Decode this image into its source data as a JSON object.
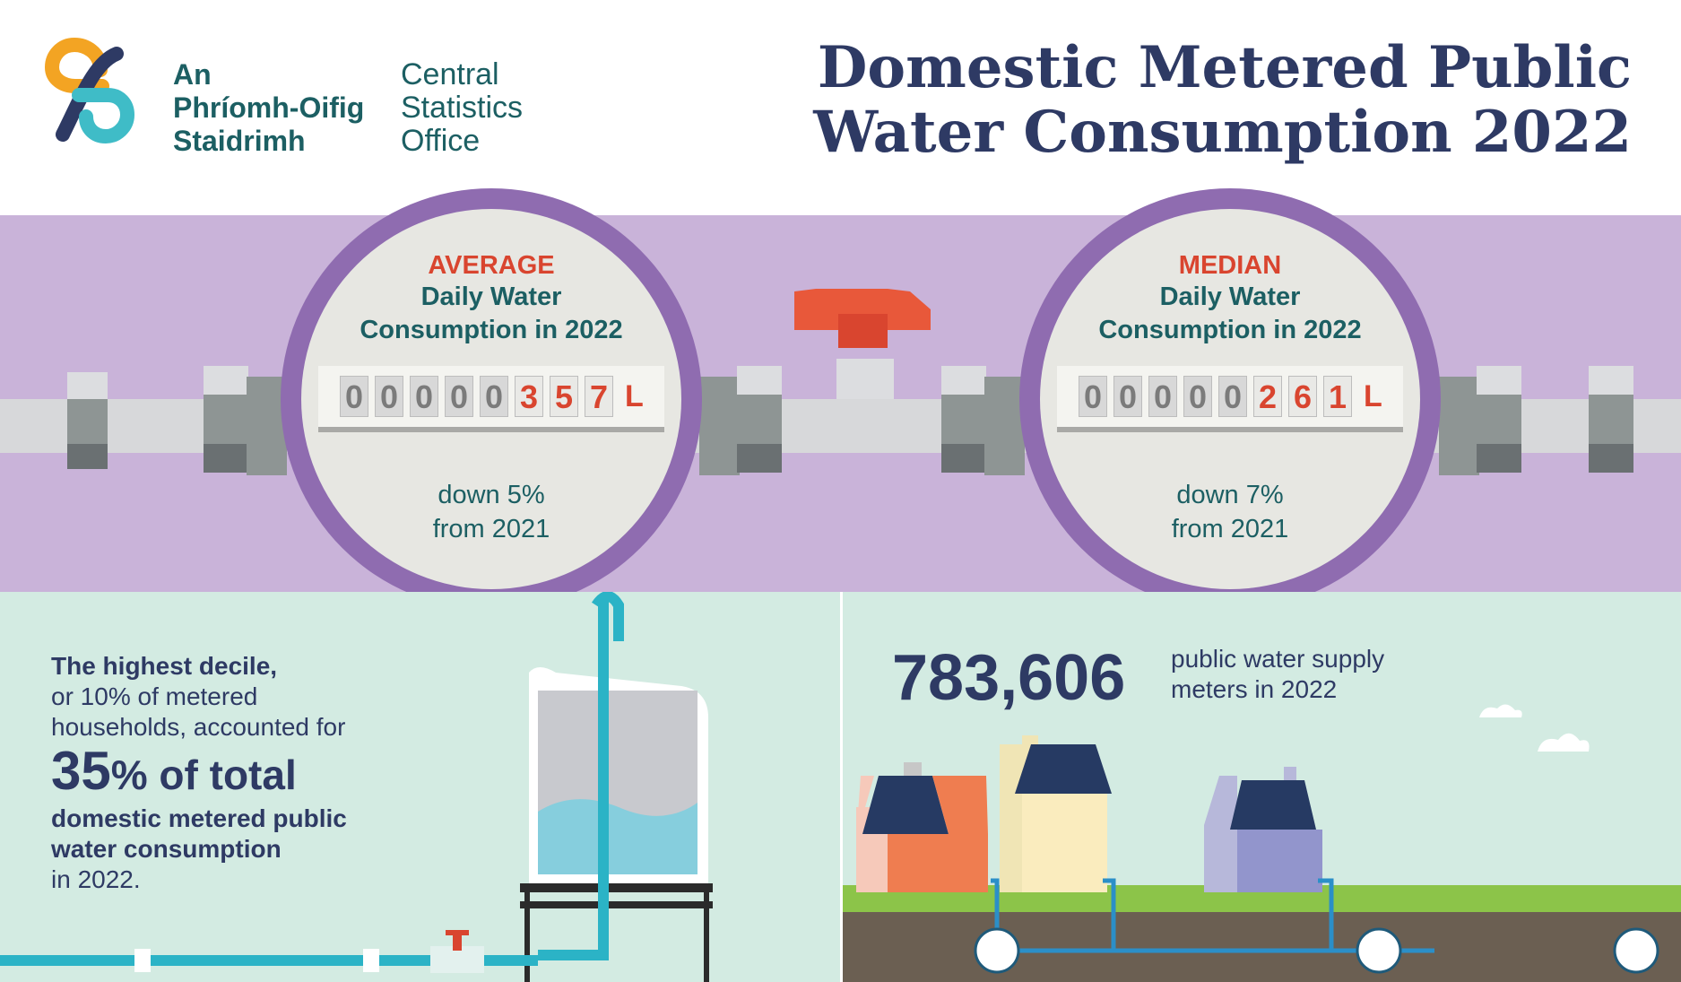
{
  "logo": {
    "irish_line1": "An",
    "irish_line2": "Phríomh-Oifig",
    "irish_line3": "Staidrimh",
    "english_line1": "Central",
    "english_line2": "Statistics",
    "english_line3": "Office",
    "colors": {
      "orange": "#f3a423",
      "navy": "#2e3a64",
      "teal": "#3fbcc7"
    }
  },
  "title": {
    "line1": "Domestic Metered Public",
    "line2": "Water Consumption 2022"
  },
  "average": {
    "kind": "AVERAGE",
    "line1": "Daily Water",
    "line2": "Consumption in 2022",
    "digits": [
      "0",
      "0",
      "0",
      "0",
      "0",
      "3",
      "5",
      "7"
    ],
    "unit": "L",
    "change_line1": "down 5%",
    "change_line2": "from 2021"
  },
  "median": {
    "kind": "MEDIAN",
    "line1": "Daily Water",
    "line2": "Consumption in 2022",
    "digits": [
      "0",
      "0",
      "0",
      "0",
      "0",
      "2",
      "6",
      "1"
    ],
    "unit": "L",
    "change_line1": "down 7%",
    "change_line2": "from 2021"
  },
  "decile": {
    "bold_line": "The highest decile,",
    "line2": "or 10% of metered",
    "line3": "households, accounted for",
    "big_number": "35",
    "big_suffix": "% of total",
    "bold_line4": "domestic metered public",
    "bold_line5": "water consumption",
    "line6": "in 2022."
  },
  "meters": {
    "count": "783,606",
    "label_line1": "public water supply",
    "label_line2": "meters in 2022"
  },
  "colors": {
    "band": "#c9b3d9",
    "ring": "#8f6cb0",
    "accent_red": "#d9452f",
    "navy": "#2e3a64",
    "teal_text": "#1c5f63",
    "mint": "#d3ebe2",
    "grass": "#8cc449",
    "soil": "#6b5f52"
  }
}
